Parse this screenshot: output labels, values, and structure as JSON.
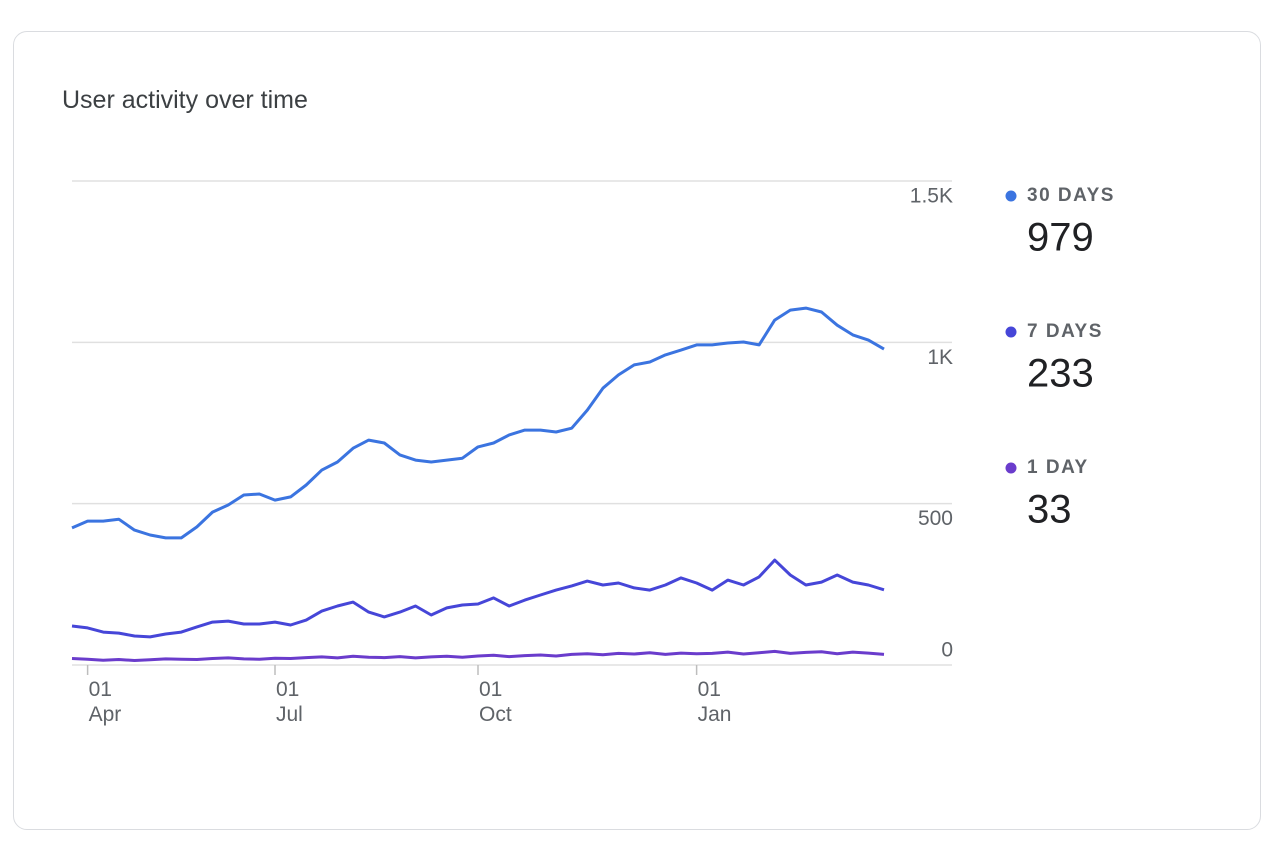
{
  "chart_data": {
    "type": "line",
    "title": "User activity over time",
    "categories": [
      null,
      "01 Apr",
      null,
      null,
      null,
      null,
      null,
      null,
      null,
      null,
      null,
      null,
      null,
      "01 Jul",
      null,
      null,
      null,
      null,
      null,
      null,
      null,
      null,
      null,
      null,
      null,
      null,
      "01 Oct",
      null,
      null,
      null,
      null,
      null,
      null,
      null,
      null,
      null,
      null,
      null,
      null,
      null,
      "01 Jan",
      null,
      null,
      null,
      null,
      null,
      null,
      null,
      null,
      null,
      null,
      null,
      null
    ],
    "series": [
      {
        "name": "30 DAYS",
        "color": "#3b74e0",
        "values": [
          425,
          446,
          446,
          452,
          418,
          403,
          394,
          394,
          428,
          474,
          496,
          527,
          530,
          511,
          521,
          558,
          604,
          629,
          672,
          697,
          688,
          651,
          635,
          629,
          635,
          641,
          676,
          688,
          713,
          728,
          728,
          722,
          734,
          790,
          858,
          899,
          930,
          939,
          961,
          976,
          992,
          992,
          998,
          1001,
          992,
          1069,
          1100,
          1106,
          1094,
          1053,
          1023,
          1007,
          979
        ]
      },
      {
        "name": "7 DAYS",
        "color": "#4646d8",
        "values": [
          121,
          115,
          102,
          99,
          90,
          87,
          96,
          102,
          118,
          133,
          136,
          127,
          127,
          133,
          124,
          139,
          167,
          183,
          195,
          164,
          149,
          164,
          183,
          155,
          177,
          186,
          189,
          208,
          183,
          201,
          217,
          232,
          245,
          260,
          248,
          254,
          239,
          232,
          248,
          270,
          254,
          232,
          263,
          248,
          273,
          325,
          279,
          248,
          257,
          279,
          257,
          248,
          233
        ]
      },
      {
        "name": "1 DAY",
        "color": "#6a3ccc",
        "values": [
          20,
          18,
          15,
          17,
          14,
          16,
          19,
          18,
          17,
          20,
          22,
          19,
          18,
          21,
          20,
          23,
          25,
          22,
          27,
          24,
          23,
          26,
          22,
          25,
          27,
          24,
          28,
          30,
          26,
          29,
          31,
          28,
          33,
          35,
          32,
          36,
          34,
          38,
          33,
          37,
          35,
          36,
          40,
          34,
          38,
          42,
          36,
          39,
          41,
          35,
          40,
          37,
          33
        ]
      }
    ],
    "ylim": [
      0,
      1500
    ],
    "yticks": [
      0,
      500,
      {
        "value": 1000,
        "label": "1K"
      },
      {
        "value": 1500,
        "label": "1.5K"
      }
    ],
    "grid": true
  }
}
